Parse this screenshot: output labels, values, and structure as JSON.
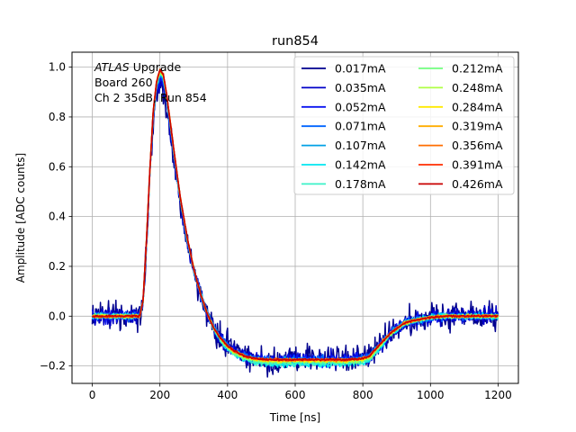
{
  "chart_data": {
    "type": "line",
    "title": "run854",
    "xlabel": "Time [ns]",
    "ylabel": "Amplitude [ADC counts]",
    "xlim": [
      -60,
      1260
    ],
    "ylim": [
      -0.27,
      1.06
    ],
    "xticks": [
      0,
      200,
      400,
      600,
      800,
      1000,
      1200
    ],
    "yticks": [
      -0.2,
      0.0,
      0.2,
      0.4,
      0.6,
      0.8,
      1.0
    ],
    "grid": true,
    "legend_position": "top-right",
    "legend_columns": 2,
    "annotation": {
      "lines": [
        {
          "italic": "ATLAS",
          "rest": " Upgrade"
        },
        {
          "italic": "",
          "rest": " Board 260"
        },
        {
          "italic": "",
          "rest": " Ch 2 35dB, Run 854"
        }
      ]
    },
    "pulse_shape": {
      "x": [
        0,
        140,
        150,
        160,
        170,
        180,
        190,
        200,
        210,
        220,
        240,
        260,
        280,
        300,
        320,
        340,
        360,
        380,
        400,
        420,
        450,
        480,
        520,
        560,
        600,
        650,
        700,
        750,
        800,
        820,
        840,
        860,
        880,
        900,
        920,
        940,
        960,
        980,
        1000,
        1050,
        1100,
        1150,
        1200
      ],
      "y": [
        0.0,
        0.0,
        0.06,
        0.3,
        0.58,
        0.82,
        0.94,
        0.99,
        0.97,
        0.89,
        0.68,
        0.48,
        0.32,
        0.19,
        0.09,
        0.01,
        -0.05,
        -0.09,
        -0.12,
        -0.14,
        -0.16,
        -0.17,
        -0.175,
        -0.175,
        -0.175,
        -0.175,
        -0.175,
        -0.175,
        -0.17,
        -0.16,
        -0.13,
        -0.1,
        -0.07,
        -0.05,
        -0.03,
        -0.02,
        -0.015,
        -0.01,
        -0.005,
        0.0,
        0.0,
        0.0,
        0.0
      ]
    },
    "series": [
      {
        "name": "0.017mA",
        "color": "#00008f",
        "noise": 0.028,
        "gain": 0.94,
        "undershoot": 1.0
      },
      {
        "name": "0.035mA",
        "color": "#0000c8",
        "noise": 0.016,
        "gain": 0.96,
        "undershoot": 1.0
      },
      {
        "name": "0.052mA",
        "color": "#0a14f0",
        "noise": 0.011,
        "gain": 0.97,
        "undershoot": 1.0
      },
      {
        "name": "0.071mA",
        "color": "#0064ff",
        "noise": 0.008,
        "gain": 0.98,
        "undershoot": 1.0
      },
      {
        "name": "0.107mA",
        "color": "#00a0e6",
        "noise": 0.007,
        "gain": 0.98,
        "undershoot": 1.04
      },
      {
        "name": "0.142mA",
        "color": "#00e6f0",
        "noise": 0.006,
        "gain": 0.99,
        "undershoot": 1.1
      },
      {
        "name": "0.178mA",
        "color": "#3cf2c8",
        "noise": 0.005,
        "gain": 0.99,
        "undershoot": 1.08
      },
      {
        "name": "0.212mA",
        "color": "#73ff7f",
        "noise": 0.004,
        "gain": 0.99,
        "undershoot": 1.05
      },
      {
        "name": "0.248mA",
        "color": "#afff46",
        "noise": 0.004,
        "gain": 0.995,
        "undershoot": 1.03
      },
      {
        "name": "0.284mA",
        "color": "#ffea00",
        "noise": 0.003,
        "gain": 0.995,
        "undershoot": 1.02
      },
      {
        "name": "0.319mA",
        "color": "#ffad00",
        "noise": 0.003,
        "gain": 1.0,
        "undershoot": 1.0
      },
      {
        "name": "0.356mA",
        "color": "#ff6e00",
        "noise": 0.003,
        "gain": 1.0,
        "undershoot": 1.0
      },
      {
        "name": "0.391mA",
        "color": "#ff2d00",
        "noise": 0.002,
        "gain": 1.0,
        "undershoot": 1.0
      },
      {
        "name": "0.426mA",
        "color": "#c80000",
        "noise": 0.002,
        "gain": 1.0,
        "undershoot": 1.0
      }
    ]
  }
}
